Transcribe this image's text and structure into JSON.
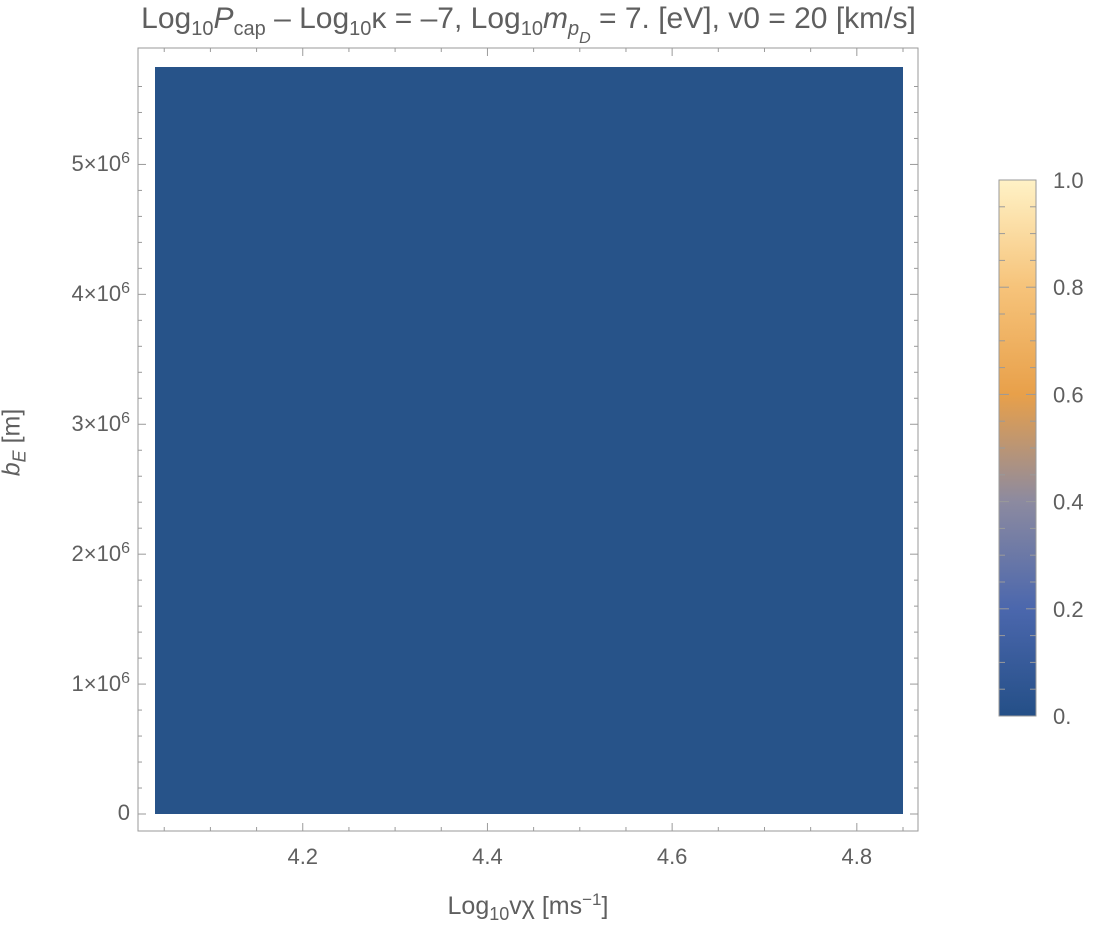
{
  "chart_data": {
    "type": "heatmap",
    "title": {
      "parts": [
        "Log",
        "10",
        "P",
        "cap",
        " – Log",
        "10",
        "κ = –7, Log",
        "10",
        "m",
        "p",
        "D",
        " = 7. [eV], v0 = 20 [km/s]"
      ]
    },
    "xlabel": {
      "base": "Log",
      "sub": "10",
      "rest": "vχ [ms",
      "sup": "−1",
      "end": "]"
    },
    "ylabel": {
      "base": "b",
      "sub": "E",
      "rest": " [m]"
    },
    "xlim": [
      4.04,
      4.85
    ],
    "ylim": [
      0,
      5750000
    ],
    "x_ticks": [
      {
        "value": 4.2,
        "label": "4.2"
      },
      {
        "value": 4.4,
        "label": "4.4"
      },
      {
        "value": 4.6,
        "label": "4.6"
      },
      {
        "value": 4.8,
        "label": "4.8"
      }
    ],
    "y_ticks": [
      {
        "value": 0,
        "label": "0",
        "exp": ""
      },
      {
        "value": 1000000,
        "label": "1×10",
        "exp": "6"
      },
      {
        "value": 2000000,
        "label": "2×10",
        "exp": "6"
      },
      {
        "value": 3000000,
        "label": "3×10",
        "exp": "6"
      },
      {
        "value": 4000000,
        "label": "4×10",
        "exp": "6"
      },
      {
        "value": 5000000,
        "label": "5×10",
        "exp": "6"
      }
    ],
    "data_extent": {
      "x": [
        4.04,
        4.85
      ],
      "y": [
        0,
        5750000
      ]
    },
    "field_value": 0.0,
    "field_color": "#275389",
    "colorbar": {
      "range": [
        0,
        1
      ],
      "ticks": [
        {
          "value": 0,
          "label": "0."
        },
        {
          "value": 0.2,
          "label": "0.2"
        },
        {
          "value": 0.4,
          "label": "0.4"
        },
        {
          "value": 0.6,
          "label": "0.6"
        },
        {
          "value": 0.8,
          "label": "0.8"
        },
        {
          "value": 1.0,
          "label": "1.0"
        }
      ],
      "stops": [
        "#244f87",
        "#4b67ad",
        "#8c8aa0",
        "#e8a04a",
        "#f6c37a",
        "#fff2c6"
      ]
    },
    "grid": false,
    "legend": "right"
  }
}
